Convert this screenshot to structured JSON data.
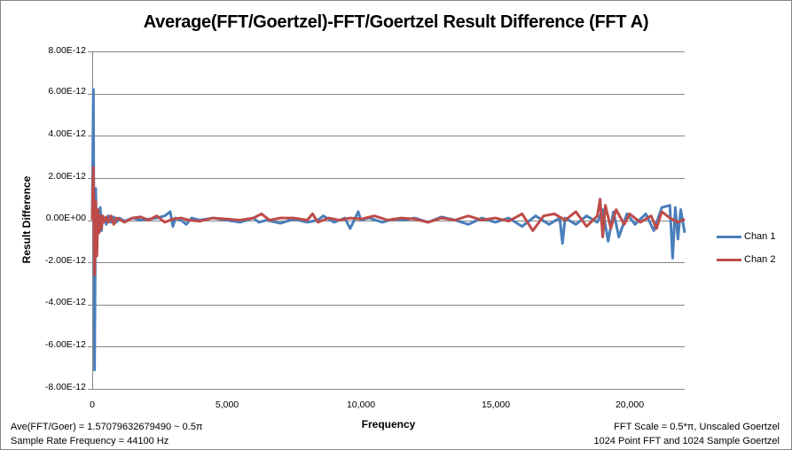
{
  "chart_data": {
    "type": "line",
    "title": "Average(FFT/Goertzel)-FFT/Goertzel Result Difference (FFT A)",
    "xlabel": "Frequency",
    "ylabel": "Result Difference",
    "xlim": [
      0,
      22050
    ],
    "ylim": [
      -8e-12,
      8e-12
    ],
    "grid": "horizontal",
    "legend_position": "right",
    "x_ticks": [
      "0",
      "5,000",
      "10,000",
      "15,000",
      "20,000"
    ],
    "x_tick_values": [
      0,
      5000,
      10000,
      15000,
      20000
    ],
    "y_ticks": [
      "8.00E-12",
      "6.00E-12",
      "4.00E-12",
      "2.00E-12",
      "0.00E+00",
      "-2.00E-12",
      "-4.00E-12",
      "-6.00E-12",
      "-8.00E-12"
    ],
    "y_tick_values": [
      8e-12,
      6e-12,
      4e-12,
      2e-12,
      0,
      -2e-12,
      -4e-12,
      -6e-12,
      -8e-12
    ],
    "series": [
      {
        "name": "Chan 1",
        "color": "#4A7EBB",
        "x": [
          0,
          43,
          86,
          129,
          172,
          215,
          258,
          301,
          344,
          387,
          430,
          520,
          600,
          700,
          800,
          900,
          1000,
          1200,
          1500,
          1800,
          2100,
          2400,
          2700,
          2900,
          3000,
          3100,
          3300,
          3500,
          3700,
          4000,
          4500,
          5000,
          5500,
          6000,
          6200,
          6500,
          7000,
          7500,
          8000,
          8400,
          8600,
          9000,
          9400,
          9600,
          9900,
          10000,
          10300,
          10800,
          11200,
          11600,
          12000,
          12500,
          13000,
          13500,
          14000,
          14500,
          15000,
          15500,
          16000,
          16500,
          17000,
          17400,
          17500,
          17600,
          18000,
          18400,
          18800,
          19000,
          19200,
          19400,
          19600,
          19900,
          20200,
          20600,
          20900,
          21200,
          21500,
          21600,
          21700,
          21800,
          21900,
          22050
        ],
        "values": [
          0,
          6.2e-12,
          -7.1e-12,
          1.5e-12,
          -1.2e-12,
          4e-13,
          -3e-13,
          6e-13,
          -5e-13,
          2e-13,
          1e-13,
          -2e-13,
          2e-13,
          -1e-13,
          1.5e-13,
          -1e-13,
          1e-13,
          -5e-14,
          1e-13,
          0,
          5e-14,
          1e-13,
          2e-13,
          4e-13,
          -3e-13,
          1e-13,
          0,
          -2e-13,
          1e-13,
          0,
          1e-13,
          0,
          -1e-13,
          1e-13,
          -1e-13,
          0,
          -1.5e-13,
          5e-14,
          -1e-13,
          0,
          2e-13,
          -1e-13,
          1e-13,
          -4e-13,
          4e-13,
          0,
          1e-13,
          -1e-13,
          5e-14,
          0,
          1e-13,
          -1e-13,
          1.5e-13,
          0,
          -2e-13,
          1e-13,
          -1e-13,
          1e-13,
          -3e-13,
          2e-13,
          -2e-13,
          1e-13,
          -1.1e-12,
          1e-13,
          -2e-13,
          2e-13,
          -1e-13,
          5e-13,
          -1e-12,
          4e-13,
          -8e-13,
          3e-13,
          -2e-13,
          3e-13,
          -5e-13,
          6e-13,
          7e-13,
          -1.8e-12,
          6e-13,
          -9e-13,
          5e-13,
          -6e-13
        ]
      },
      {
        "name": "Chan 2",
        "color": "#BE4B48",
        "x": [
          0,
          43,
          86,
          129,
          172,
          215,
          258,
          301,
          344,
          387,
          430,
          520,
          600,
          700,
          800,
          900,
          1000,
          1200,
          1500,
          1800,
          2100,
          2400,
          2700,
          3000,
          3300,
          3600,
          4000,
          4500,
          5000,
          5500,
          6000,
          6300,
          6600,
          7000,
          7500,
          8000,
          8200,
          8400,
          8800,
          9200,
          9600,
          10000,
          10500,
          11000,
          11500,
          12000,
          12500,
          13000,
          13500,
          14000,
          14500,
          15000,
          15500,
          16000,
          16400,
          16800,
          17200,
          17600,
          18000,
          18400,
          18800,
          18900,
          19000,
          19100,
          19300,
          19500,
          19800,
          20000,
          20400,
          20800,
          21000,
          21200,
          21500,
          21800,
          22050
        ],
        "values": [
          0,
          2.5e-12,
          -2.6e-12,
          9e-13,
          -1.7e-12,
          5e-13,
          -6e-13,
          2e-13,
          -4e-13,
          2e-13,
          -1e-13,
          1.5e-13,
          -1e-13,
          2e-13,
          -2e-13,
          1e-13,
          5e-14,
          -1e-13,
          1e-13,
          1.5e-13,
          0,
          2e-13,
          -1e-13,
          5e-14,
          1e-13,
          0,
          -5e-14,
          1e-13,
          5e-14,
          0,
          1e-13,
          3e-13,
          0,
          1e-13,
          1e-13,
          0,
          3e-13,
          -1e-13,
          1e-13,
          0,
          1e-13,
          5e-14,
          2e-13,
          0,
          1e-13,
          5e-14,
          -1e-13,
          1e-13,
          0,
          2e-13,
          0,
          1e-13,
          -5e-14,
          3e-13,
          -5e-13,
          2e-13,
          3e-13,
          0,
          4e-13,
          -3e-13,
          2e-13,
          1e-12,
          -8e-13,
          7e-13,
          -4e-13,
          5e-13,
          -2e-13,
          3e-13,
          -1e-13,
          2e-13,
          -4e-13,
          4e-13,
          1e-13,
          -1e-13,
          5e-14
        ]
      }
    ]
  },
  "legend": {
    "items": [
      {
        "label": "Chan 1",
        "color": "#4A7EBB"
      },
      {
        "label": "Chan 2",
        "color": "#BE4B48"
      }
    ]
  },
  "notes": {
    "bottom_left_1": "Ave(FFT/Goer) = 1.57079632679490  ~ 0.5π",
    "bottom_left_2": "Sample Rate Frequency = 44100  Hz",
    "bottom_right_1": "FFT Scale = 0.5*π, Unscaled Goertzel",
    "bottom_right_2": "1024 Point FFT and 1024 Sample Goertzel"
  },
  "colors": {
    "gridline": "#868686",
    "axis": "#868686"
  }
}
